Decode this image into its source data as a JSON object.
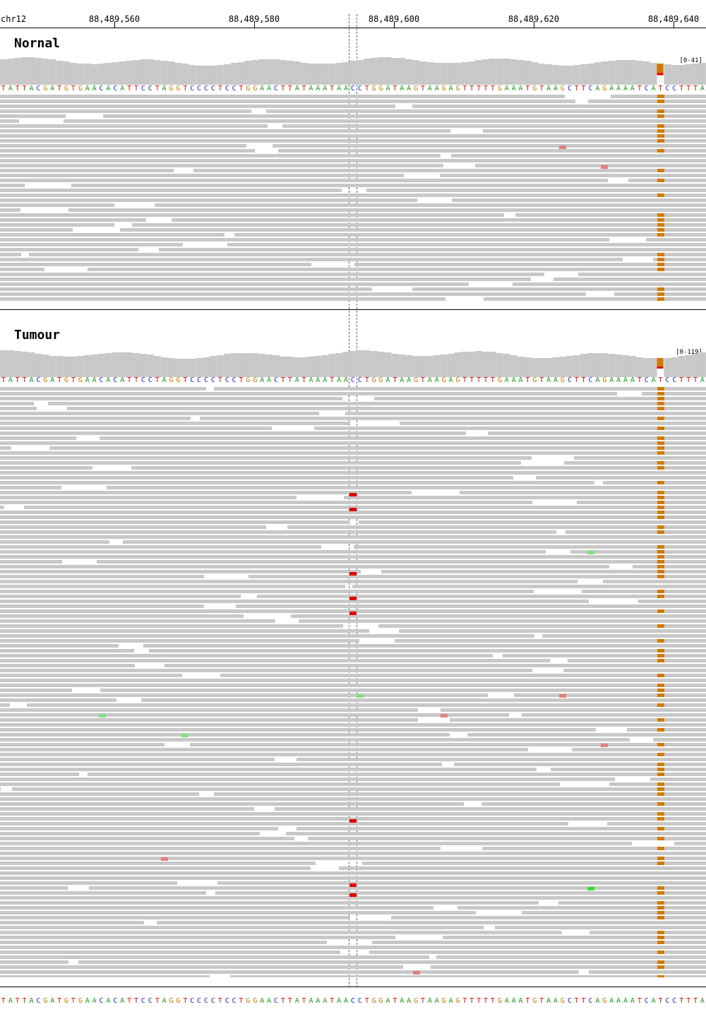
{
  "ruler": {
    "chromosome": "chr12",
    "ticks": [
      {
        "pos": 88489560,
        "label": "88,489,560"
      },
      {
        "pos": 88489580,
        "label": "88,489,580"
      },
      {
        "pos": 88489600,
        "label": "88,489,600"
      },
      {
        "pos": 88489620,
        "label": "88,489,620"
      },
      {
        "pos": 88489640,
        "label": "88,489,640"
      }
    ]
  },
  "reference_sequence": "TATTACGATGTGAACACATTCCTAGGTCCCCTCCTGGAACTTATAAATAACCTGGATAAGTAAGAGTTTTTGAAATGTAAGCTTCAGAAAATCATCCTTTA",
  "panels": [
    {
      "name": "normal",
      "title": "Nornal",
      "coverage_range": "[0-41]",
      "read_rows": 42
    },
    {
      "name": "tumour",
      "title": "Tumour",
      "coverage_range": "[0-119]",
      "read_rows": 120
    }
  ],
  "colors": {
    "read": "#c8c8c8",
    "coverage": "#c8c8c8",
    "mismatch_G": "#d27a00",
    "mismatch_T": "#e00000",
    "mismatch_A": "#2ee02e",
    "mismatch_faint_T": "#e08080",
    "mismatch_faint_A": "#80e080"
  }
}
